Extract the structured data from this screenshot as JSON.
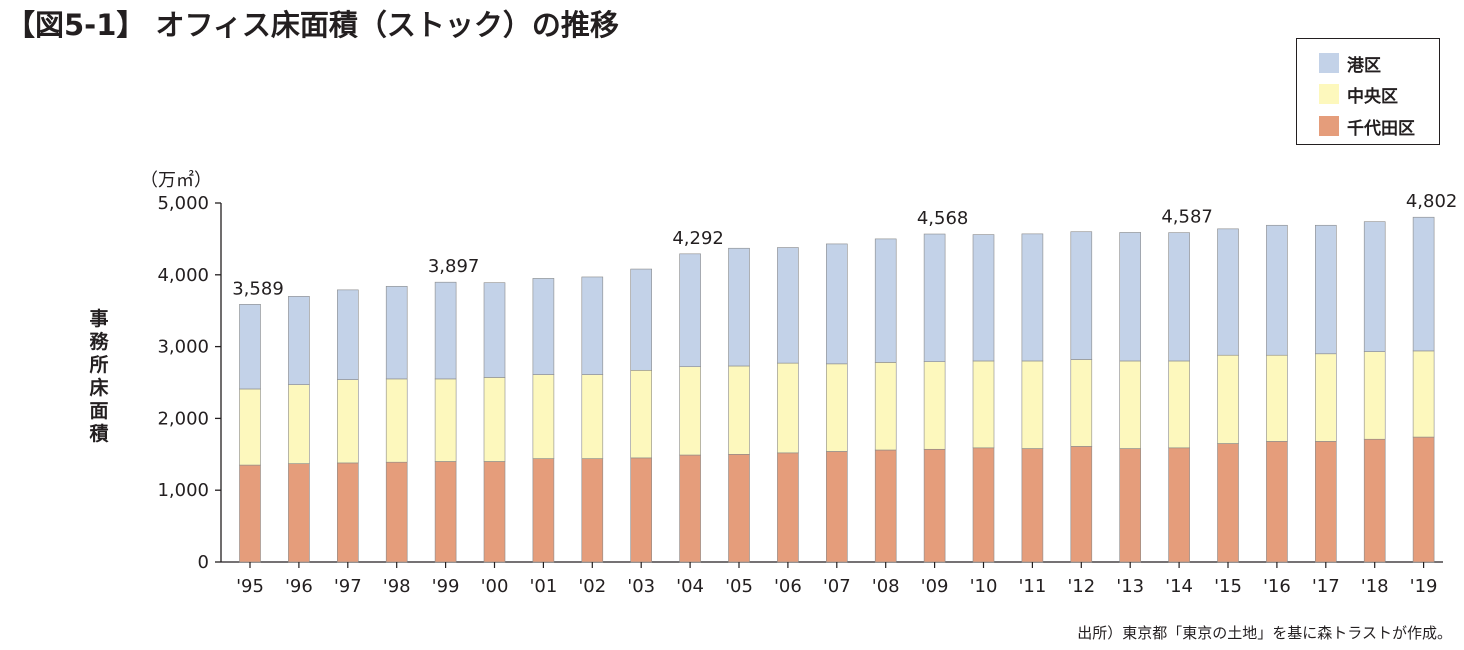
{
  "title": "【図5-1】 オフィス床面積（ストック）の推移",
  "source": "出所）東京都「東京の土地」を基に森トラストが作成。",
  "legend": [
    {
      "label": "港区",
      "color": "#c3d2e8"
    },
    {
      "label": "中央区",
      "color": "#fdf8bd"
    },
    {
      "label": "千代田区",
      "color": "#e59d7b"
    }
  ],
  "chart_data": {
    "type": "bar",
    "stacked": true,
    "title": "",
    "xlabel": "",
    "ylabel": "事務所床面積",
    "unit": "（万㎡）",
    "ylim": [
      0,
      5000
    ],
    "yticks": [
      0,
      1000,
      2000,
      3000,
      4000,
      5000
    ],
    "ytick_labels": [
      "0",
      "1,000",
      "2,000",
      "3,000",
      "4,000",
      "5,000"
    ],
    "categories": [
      "'95",
      "'96",
      "'97",
      "'98",
      "'99",
      "'00",
      "'01",
      "'02",
      "'03",
      "'04",
      "'05",
      "'06",
      "'07",
      "'08",
      "'09",
      "'10",
      "'11",
      "'12",
      "'13",
      "'14",
      "'15",
      "'16",
      "'17",
      "'18",
      "'19"
    ],
    "series": [
      {
        "name": "千代田区",
        "color": "#e59d7b",
        "values": [
          1350,
          1370,
          1380,
          1390,
          1400,
          1400,
          1440,
          1440,
          1450,
          1490,
          1500,
          1520,
          1540,
          1560,
          1570,
          1590,
          1580,
          1610,
          1580,
          1590,
          1650,
          1680,
          1680,
          1710,
          1740
        ]
      },
      {
        "name": "中央区",
        "color": "#fdf8bd",
        "values": [
          1060,
          1100,
          1160,
          1160,
          1150,
          1170,
          1170,
          1170,
          1220,
          1230,
          1230,
          1250,
          1220,
          1220,
          1220,
          1210,
          1220,
          1210,
          1220,
          1210,
          1230,
          1200,
          1220,
          1220,
          1200
        ]
      },
      {
        "name": "港区",
        "color": "#c3d2e8",
        "values": [
          1179,
          1230,
          1250,
          1290,
          1347,
          1320,
          1340,
          1360,
          1410,
          1572,
          1640,
          1610,
          1670,
          1720,
          1778,
          1760,
          1770,
          1780,
          1790,
          1787,
          1760,
          1810,
          1790,
          1810,
          1862
        ]
      }
    ],
    "data_labels": [
      {
        "category": "'95",
        "text": "3,589"
      },
      {
        "category": "'99",
        "text": "3,897"
      },
      {
        "category": "'04",
        "text": "4,292"
      },
      {
        "category": "'09",
        "text": "4,568"
      },
      {
        "category": "'14",
        "text": "4,587"
      },
      {
        "category": "'19",
        "text": "4,802"
      }
    ],
    "grid": false,
    "legend_position": "top-right"
  }
}
